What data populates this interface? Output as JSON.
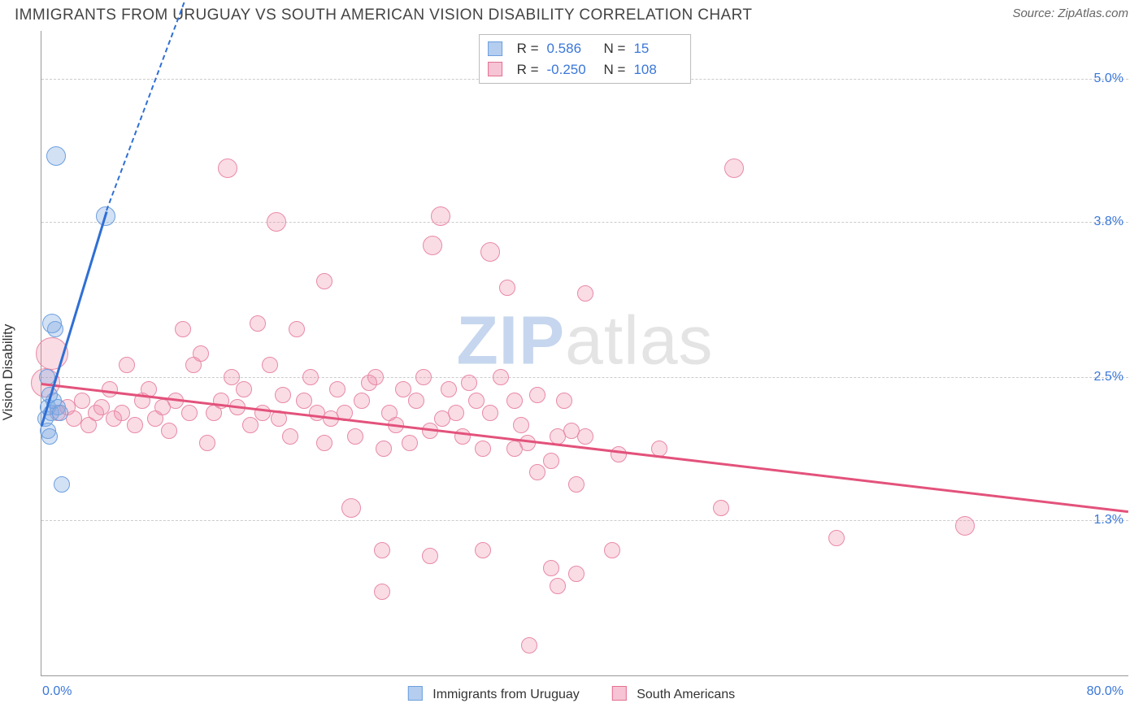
{
  "header": {
    "title": "IMMIGRANTS FROM URUGUAY VS SOUTH AMERICAN VISION DISABILITY CORRELATION CHART",
    "source": "Source: ZipAtlas.com"
  },
  "ylabel": "Vision Disability",
  "watermark_prefix": "ZIP",
  "watermark_suffix": "atlas",
  "axes": {
    "xmin": 0.0,
    "xmax": 80.0,
    "ymin": 0.0,
    "ymax": 5.4,
    "yticks": [
      {
        "v": 5.0,
        "label": "5.0%"
      },
      {
        "v": 3.8,
        "label": "3.8%"
      },
      {
        "v": 2.5,
        "label": "2.5%"
      },
      {
        "v": 1.3,
        "label": "1.3%"
      }
    ],
    "xtick_left": "0.0%",
    "xtick_right": "80.0%",
    "grid_color": "#cccccc",
    "tick_color": "#3a77d8"
  },
  "series": {
    "uruguay": {
      "label": "Immigrants from Uruguay",
      "fill": "rgba(130,170,225,0.35)",
      "stroke": "#6b9fde",
      "swatch_fill": "#b5cdee",
      "swatch_border": "#6b9fde",
      "R": "0.586",
      "N": "15",
      "trend": {
        "x1": 0,
        "y1": 2.1,
        "x2": 4.8,
        "y2": 3.9,
        "color": "#2f6fd4",
        "width": 3,
        "dashed_ext": {
          "x2": 13,
          "y2": 6.4
        }
      },
      "points": [
        {
          "x": 0.3,
          "y": 2.15,
          "r": 10
        },
        {
          "x": 0.5,
          "y": 2.25,
          "r": 10
        },
        {
          "x": 0.7,
          "y": 2.2,
          "r": 10
        },
        {
          "x": 0.9,
          "y": 2.3,
          "r": 10
        },
        {
          "x": 0.5,
          "y": 2.05,
          "r": 10
        },
        {
          "x": 1.2,
          "y": 2.25,
          "r": 10
        },
        {
          "x": 0.6,
          "y": 2.35,
          "r": 10
        },
        {
          "x": 1.0,
          "y": 2.9,
          "r": 10
        },
        {
          "x": 1.4,
          "y": 2.2,
          "r": 10
        },
        {
          "x": 0.4,
          "y": 2.5,
          "r": 10
        },
        {
          "x": 0.8,
          "y": 2.95,
          "r": 12
        },
        {
          "x": 1.1,
          "y": 4.35,
          "r": 12
        },
        {
          "x": 4.7,
          "y": 3.85,
          "r": 12
        },
        {
          "x": 1.5,
          "y": 1.6,
          "r": 10
        },
        {
          "x": 0.6,
          "y": 2.0,
          "r": 10
        }
      ]
    },
    "sa": {
      "label": "South Americans",
      "fill": "rgba(240,140,170,0.30)",
      "stroke": "#e88aa7",
      "swatch_fill": "#f6c4d4",
      "swatch_border": "#e37090",
      "R": "-0.250",
      "N": "108",
      "trend": {
        "x1": 0,
        "y1": 2.45,
        "x2": 80,
        "y2": 1.38,
        "color": "#e3527b",
        "width": 3
      },
      "points": [
        {
          "x": 0.3,
          "y": 2.45,
          "r": 18
        },
        {
          "x": 0.8,
          "y": 2.7,
          "r": 20
        },
        {
          "x": 1.2,
          "y": 2.2,
          "r": 10
        },
        {
          "x": 1.9,
          "y": 2.25,
          "r": 10
        },
        {
          "x": 2.4,
          "y": 2.15,
          "r": 10
        },
        {
          "x": 3.0,
          "y": 2.3,
          "r": 10
        },
        {
          "x": 3.5,
          "y": 2.1,
          "r": 10
        },
        {
          "x": 4.0,
          "y": 2.2,
          "r": 10
        },
        {
          "x": 4.4,
          "y": 2.25,
          "r": 10
        },
        {
          "x": 5.0,
          "y": 2.4,
          "r": 10
        },
        {
          "x": 5.3,
          "y": 2.15,
          "r": 10
        },
        {
          "x": 5.9,
          "y": 2.2,
          "r": 10
        },
        {
          "x": 6.3,
          "y": 2.6,
          "r": 10
        },
        {
          "x": 6.9,
          "y": 2.1,
          "r": 10
        },
        {
          "x": 7.4,
          "y": 2.3,
          "r": 10
        },
        {
          "x": 7.9,
          "y": 2.4,
          "r": 10
        },
        {
          "x": 8.4,
          "y": 2.15,
          "r": 10
        },
        {
          "x": 8.9,
          "y": 2.25,
          "r": 10
        },
        {
          "x": 9.4,
          "y": 2.05,
          "r": 10
        },
        {
          "x": 9.9,
          "y": 2.3,
          "r": 10
        },
        {
          "x": 10.4,
          "y": 2.9,
          "r": 10
        },
        {
          "x": 10.9,
          "y": 2.2,
          "r": 10
        },
        {
          "x": 11.2,
          "y": 2.6,
          "r": 10
        },
        {
          "x": 11.7,
          "y": 2.7,
          "r": 10
        },
        {
          "x": 12.2,
          "y": 1.95,
          "r": 10
        },
        {
          "x": 12.7,
          "y": 2.2,
          "r": 10
        },
        {
          "x": 13.2,
          "y": 2.3,
          "r": 10
        },
        {
          "x": 13.7,
          "y": 4.25,
          "r": 12
        },
        {
          "x": 14.0,
          "y": 2.5,
          "r": 10
        },
        {
          "x": 14.4,
          "y": 2.25,
          "r": 10
        },
        {
          "x": 14.9,
          "y": 2.4,
          "r": 10
        },
        {
          "x": 15.4,
          "y": 2.1,
          "r": 10
        },
        {
          "x": 15.9,
          "y": 2.95,
          "r": 10
        },
        {
          "x": 16.3,
          "y": 2.2,
          "r": 10
        },
        {
          "x": 16.8,
          "y": 2.6,
          "r": 10
        },
        {
          "x": 17.3,
          "y": 3.8,
          "r": 12
        },
        {
          "x": 17.5,
          "y": 2.15,
          "r": 10
        },
        {
          "x": 17.8,
          "y": 2.35,
          "r": 10
        },
        {
          "x": 18.3,
          "y": 2.0,
          "r": 10
        },
        {
          "x": 18.8,
          "y": 2.9,
          "r": 10
        },
        {
          "x": 19.3,
          "y": 2.3,
          "r": 10
        },
        {
          "x": 19.8,
          "y": 2.5,
          "r": 10
        },
        {
          "x": 20.3,
          "y": 2.2,
          "r": 10
        },
        {
          "x": 20.8,
          "y": 3.3,
          "r": 10
        },
        {
          "x": 20.8,
          "y": 1.95,
          "r": 10
        },
        {
          "x": 21.3,
          "y": 2.15,
          "r": 10
        },
        {
          "x": 21.8,
          "y": 2.4,
          "r": 10
        },
        {
          "x": 22.3,
          "y": 2.2,
          "r": 10
        },
        {
          "x": 22.8,
          "y": 1.4,
          "r": 12
        },
        {
          "x": 23.1,
          "y": 2.0,
          "r": 10
        },
        {
          "x": 23.6,
          "y": 2.3,
          "r": 10
        },
        {
          "x": 24.1,
          "y": 2.45,
          "r": 10
        },
        {
          "x": 24.6,
          "y": 2.5,
          "r": 10
        },
        {
          "x": 25.1,
          "y": 0.7,
          "r": 10
        },
        {
          "x": 25.1,
          "y": 1.05,
          "r": 10
        },
        {
          "x": 25.2,
          "y": 1.9,
          "r": 10
        },
        {
          "x": 25.6,
          "y": 2.2,
          "r": 10
        },
        {
          "x": 26.1,
          "y": 2.1,
          "r": 10
        },
        {
          "x": 26.6,
          "y": 2.4,
          "r": 10
        },
        {
          "x": 27.1,
          "y": 1.95,
          "r": 10
        },
        {
          "x": 27.6,
          "y": 2.3,
          "r": 10
        },
        {
          "x": 28.1,
          "y": 2.5,
          "r": 10
        },
        {
          "x": 28.6,
          "y": 1.0,
          "r": 10
        },
        {
          "x": 28.6,
          "y": 2.05,
          "r": 10
        },
        {
          "x": 28.8,
          "y": 3.6,
          "r": 12
        },
        {
          "x": 29.5,
          "y": 2.15,
          "r": 10
        },
        {
          "x": 29.4,
          "y": 3.85,
          "r": 12
        },
        {
          "x": 30.0,
          "y": 2.4,
          "r": 10
        },
        {
          "x": 30.5,
          "y": 2.2,
          "r": 10
        },
        {
          "x": 31.0,
          "y": 2.0,
          "r": 10
        },
        {
          "x": 31.5,
          "y": 2.45,
          "r": 10
        },
        {
          "x": 32.0,
          "y": 2.3,
          "r": 10
        },
        {
          "x": 32.5,
          "y": 1.9,
          "r": 10
        },
        {
          "x": 32.5,
          "y": 1.05,
          "r": 10
        },
        {
          "x": 33.0,
          "y": 2.2,
          "r": 10
        },
        {
          "x": 33.0,
          "y": 3.55,
          "r": 12
        },
        {
          "x": 33.8,
          "y": 2.5,
          "r": 10
        },
        {
          "x": 34.8,
          "y": 1.9,
          "r": 10
        },
        {
          "x": 34.3,
          "y": 3.25,
          "r": 10
        },
        {
          "x": 34.8,
          "y": 2.3,
          "r": 10
        },
        {
          "x": 35.3,
          "y": 2.1,
          "r": 10
        },
        {
          "x": 35.8,
          "y": 1.95,
          "r": 10
        },
        {
          "x": 35.9,
          "y": 0.25,
          "r": 10
        },
        {
          "x": 36.5,
          "y": 1.7,
          "r": 10
        },
        {
          "x": 36.5,
          "y": 2.35,
          "r": 10
        },
        {
          "x": 37.5,
          "y": 0.9,
          "r": 10
        },
        {
          "x": 37.5,
          "y": 1.8,
          "r": 10
        },
        {
          "x": 38.0,
          "y": 2.0,
          "r": 10
        },
        {
          "x": 38.0,
          "y": 0.75,
          "r": 10
        },
        {
          "x": 38.5,
          "y": 2.3,
          "r": 10
        },
        {
          "x": 39.4,
          "y": 1.6,
          "r": 10
        },
        {
          "x": 39.0,
          "y": 2.05,
          "r": 10
        },
        {
          "x": 39.4,
          "y": 0.85,
          "r": 10
        },
        {
          "x": 40.0,
          "y": 2.0,
          "r": 10
        },
        {
          "x": 40.0,
          "y": 3.2,
          "r": 10
        },
        {
          "x": 42.5,
          "y": 1.85,
          "r": 10
        },
        {
          "x": 42.0,
          "y": 1.05,
          "r": 10
        },
        {
          "x": 45.5,
          "y": 1.9,
          "r": 10
        },
        {
          "x": 50.0,
          "y": 1.4,
          "r": 10
        },
        {
          "x": 51.0,
          "y": 4.25,
          "r": 12
        },
        {
          "x": 58.5,
          "y": 1.15,
          "r": 10
        },
        {
          "x": 68.0,
          "y": 1.25,
          "r": 12
        }
      ]
    }
  },
  "legend_labels": {
    "R": "R =",
    "N": "N ="
  },
  "colors": {
    "title": "#444444",
    "source": "#666666",
    "axis_text": "#3a77d8",
    "body_text": "#333333"
  }
}
